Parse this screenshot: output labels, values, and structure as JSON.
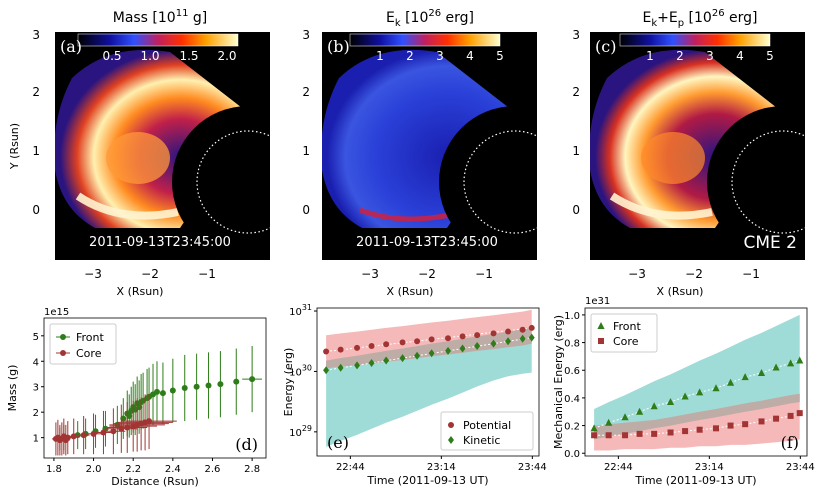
{
  "figure": {
    "date_stamp": "2011-09-13T23:45:00",
    "cme_label": "CME 2",
    "image_xlabel": "X (Rsun)",
    "image_ylabel": "Y (Rsun)",
    "image_x_ticks": [
      "−3",
      "−2",
      "−1"
    ],
    "image_y_ticks": [
      "0",
      "1",
      "2",
      "3"
    ],
    "colors": {
      "front": "#2e7d1a",
      "core": "#a33434",
      "potential_band": "#f4a8a8",
      "kinetic_band": "#8fd6d0",
      "overlap_band": "#b9aca6",
      "teal": "#1f9e94"
    }
  },
  "panels": [
    {
      "label": "(a)",
      "title": "Mass [10",
      "title_sup": "11",
      "title_unit": " g]",
      "cbar_ticks": [
        "0.5",
        "1.0",
        "1.5",
        "2.0"
      ]
    },
    {
      "label": "(b)",
      "title": "E",
      "title_sub": "k",
      "title_mid": " [10",
      "title_sup": "26",
      "title_unit": " erg]",
      "cbar_ticks": [
        "1",
        "2",
        "3",
        "4",
        "5"
      ]
    },
    {
      "label": "(c)",
      "title": "E",
      "title_sub": "k",
      "title_plus": "+E",
      "title_sub2": "p",
      "title_mid": " [10",
      "title_sup": "26",
      "title_unit": " erg]",
      "cbar_ticks": [
        "1",
        "2",
        "3",
        "4",
        "5"
      ]
    }
  ],
  "chart_data": [
    {
      "id": "d",
      "type": "scatter",
      "label": "(d)",
      "xlabel": "Distance (Rsun)",
      "ylabel": "Mass (g)",
      "offset_text": "1e15",
      "xlim": [
        1.75,
        2.87
      ],
      "ylim": [
        0.2,
        5.7
      ],
      "x_ticks": [
        "1.8",
        "2.0",
        "2.2",
        "2.4",
        "2.6",
        "2.8"
      ],
      "y_ticks": [
        "1",
        "2",
        "3",
        "4",
        "5"
      ],
      "legend": [
        "Front",
        "Core"
      ],
      "series": [
        {
          "name": "Front",
          "x": [
            1.83,
            1.85,
            1.92,
            1.96,
            2.01,
            2.06,
            2.12,
            2.15,
            2.17,
            2.18,
            2.19,
            2.2,
            2.21,
            2.22,
            2.23,
            2.24,
            2.25,
            2.27,
            2.28,
            2.3,
            2.32,
            2.35,
            2.4,
            2.46,
            2.52,
            2.58,
            2.64,
            2.72,
            2.8
          ],
          "y": [
            0.95,
            1.0,
            1.1,
            1.15,
            1.25,
            1.35,
            1.5,
            1.75,
            1.95,
            1.85,
            2.05,
            2.2,
            2.1,
            2.35,
            2.2,
            2.4,
            2.45,
            2.55,
            2.6,
            2.7,
            2.8,
            2.75,
            2.85,
            2.95,
            3.0,
            3.05,
            3.1,
            3.2,
            3.3
          ],
          "err": [
            0.45,
            0.5,
            0.55,
            0.6,
            0.65,
            0.7,
            0.75,
            0.8,
            0.9,
            0.85,
            0.95,
            1.0,
            1.0,
            1.05,
            1.05,
            1.1,
            1.1,
            1.15,
            1.15,
            1.2,
            1.2,
            1.2,
            1.25,
            1.3,
            1.3,
            1.3,
            1.3,
            1.3,
            1.3
          ],
          "xerr": [
            0.0,
            0.0,
            0.0,
            0.0,
            0.0,
            0.0,
            0.0,
            0.0,
            0.0,
            0.0,
            0.0,
            0.0,
            0.0,
            0.0,
            0.0,
            0.0,
            0.0,
            0.0,
            0.0,
            0.0,
            0.0,
            0.0,
            0.0,
            0.0,
            0.0,
            0.0,
            0.0,
            0.0,
            0.05
          ]
        },
        {
          "name": "Core",
          "x": [
            1.81,
            1.82,
            1.83,
            1.84,
            1.85,
            1.86,
            1.87,
            1.9,
            1.95,
            2.0,
            2.05,
            2.1,
            2.14,
            2.17,
            2.2,
            2.22,
            2.24,
            2.26,
            2.28
          ],
          "y": [
            0.95,
            1.0,
            0.9,
            0.95,
            1.05,
            0.9,
            1.0,
            1.05,
            1.1,
            1.15,
            1.2,
            1.25,
            1.35,
            1.4,
            1.45,
            1.5,
            1.55,
            1.6,
            1.65
          ],
          "err": [
            0.65,
            0.7,
            0.6,
            0.65,
            0.7,
            0.6,
            0.65,
            0.7,
            0.75,
            0.8,
            0.85,
            0.9,
            0.95,
            1.0,
            1.0,
            1.05,
            1.05,
            1.1,
            1.1
          ],
          "xerr": [
            0.02,
            0.02,
            0.02,
            0.02,
            0.02,
            0.02,
            0.02,
            0.03,
            0.03,
            0.04,
            0.05,
            0.06,
            0.08,
            0.1,
            0.12,
            0.14,
            0.14,
            0.14,
            0.14
          ]
        }
      ]
    },
    {
      "id": "e",
      "type": "scatter",
      "label": "(e)",
      "xlabel": "Time (2011-09-13 UT)",
      "ylabel": "Energy (erg)",
      "yscale": "log",
      "xlim": [
        22.55,
        23.77
      ],
      "ylim_log10": [
        28.6,
        31.05
      ],
      "x_ticks": [
        "22:44",
        "23:14",
        "23:44"
      ],
      "y_ticks": [
        {
          "base": "10",
          "exp": "29"
        },
        {
          "base": "10",
          "exp": "30"
        },
        {
          "base": "10",
          "exp": "31"
        }
      ],
      "legend": [
        "Potential",
        "Kinetic"
      ],
      "x_hours": [
        22.6,
        22.68,
        22.77,
        22.85,
        22.93,
        23.02,
        23.1,
        23.18,
        23.27,
        23.35,
        23.43,
        23.52,
        23.6,
        23.68,
        23.73
      ],
      "series": [
        {
          "name": "Potential",
          "log10_values": [
            30.33,
            30.36,
            30.39,
            30.42,
            30.45,
            30.48,
            30.5,
            30.53,
            30.55,
            30.58,
            30.6,
            30.63,
            30.66,
            30.69,
            30.72
          ],
          "band_log10": [
            [
              30.05,
              30.6
            ],
            [
              30.08,
              30.63
            ],
            [
              30.1,
              30.66
            ],
            [
              30.13,
              30.69
            ],
            [
              30.16,
              30.72
            ],
            [
              30.19,
              30.75
            ],
            [
              30.22,
              30.78
            ],
            [
              30.25,
              30.81
            ],
            [
              30.28,
              30.84
            ],
            [
              30.31,
              30.87
            ],
            [
              30.34,
              30.9
            ],
            [
              30.37,
              30.93
            ],
            [
              30.4,
              30.96
            ],
            [
              30.43,
              30.99
            ],
            [
              30.46,
              31.02
            ]
          ]
        },
        {
          "name": "Kinetic",
          "log10_values": [
            30.02,
            30.06,
            30.1,
            30.14,
            30.18,
            30.22,
            30.26,
            30.3,
            30.34,
            30.38,
            30.42,
            30.46,
            30.5,
            30.54,
            30.56
          ],
          "band_log10": [
            [
              28.75,
              30.18
            ],
            [
              28.85,
              30.22
            ],
            [
              28.95,
              30.26
            ],
            [
              29.05,
              30.3
            ],
            [
              29.15,
              30.34
            ],
            [
              29.25,
              30.38
            ],
            [
              29.35,
              30.42
            ],
            [
              29.45,
              30.46
            ],
            [
              29.55,
              30.5
            ],
            [
              29.65,
              30.54
            ],
            [
              29.75,
              30.58
            ],
            [
              29.85,
              30.62
            ],
            [
              29.92,
              30.66
            ],
            [
              29.96,
              30.7
            ],
            [
              29.98,
              30.72
            ]
          ]
        }
      ]
    },
    {
      "id": "f",
      "type": "scatter",
      "label": "(f)",
      "xlabel": "Time (2011-09-13 UT)",
      "ylabel": "Mechanical Energy (erg)",
      "offset_text": "1e31",
      "xlim": [
        22.55,
        23.77
      ],
      "ylim": [
        -0.02,
        1.05
      ],
      "x_ticks": [
        "22:44",
        "23:14",
        "23:44"
      ],
      "y_ticks": [
        "0.0",
        "0.2",
        "0.4",
        "0.6",
        "0.8",
        "1.0"
      ],
      "legend": [
        "Front",
        "Core"
      ],
      "x_hours": [
        22.6,
        22.68,
        22.77,
        22.85,
        22.93,
        23.02,
        23.1,
        23.18,
        23.27,
        23.35,
        23.43,
        23.52,
        23.6,
        23.68,
        23.73
      ],
      "series": [
        {
          "name": "Front",
          "values": [
            0.18,
            0.22,
            0.26,
            0.3,
            0.34,
            0.37,
            0.41,
            0.44,
            0.47,
            0.51,
            0.55,
            0.58,
            0.62,
            0.65,
            0.67
          ],
          "band": [
            [
              0.1,
              0.32
            ],
            [
              0.12,
              0.37
            ],
            [
              0.14,
              0.42
            ],
            [
              0.16,
              0.47
            ],
            [
              0.18,
              0.52
            ],
            [
              0.2,
              0.57
            ],
            [
              0.22,
              0.62
            ],
            [
              0.24,
              0.67
            ],
            [
              0.26,
              0.72
            ],
            [
              0.28,
              0.77
            ],
            [
              0.3,
              0.82
            ],
            [
              0.32,
              0.87
            ],
            [
              0.34,
              0.92
            ],
            [
              0.36,
              0.97
            ],
            [
              0.37,
              1.0
            ]
          ]
        },
        {
          "name": "Core",
          "values": [
            0.13,
            0.13,
            0.13,
            0.14,
            0.14,
            0.15,
            0.16,
            0.17,
            0.18,
            0.2,
            0.21,
            0.23,
            0.25,
            0.27,
            0.29
          ],
          "band": [
            [
              0.02,
              0.2
            ],
            [
              0.02,
              0.21
            ],
            [
              0.03,
              0.22
            ],
            [
              0.03,
              0.23
            ],
            [
              0.03,
              0.24
            ],
            [
              0.04,
              0.26
            ],
            [
              0.04,
              0.28
            ],
            [
              0.05,
              0.3
            ],
            [
              0.05,
              0.32
            ],
            [
              0.06,
              0.34
            ],
            [
              0.06,
              0.36
            ],
            [
              0.07,
              0.38
            ],
            [
              0.08,
              0.4
            ],
            [
              0.09,
              0.42
            ],
            [
              0.1,
              0.43
            ]
          ]
        }
      ]
    }
  ]
}
